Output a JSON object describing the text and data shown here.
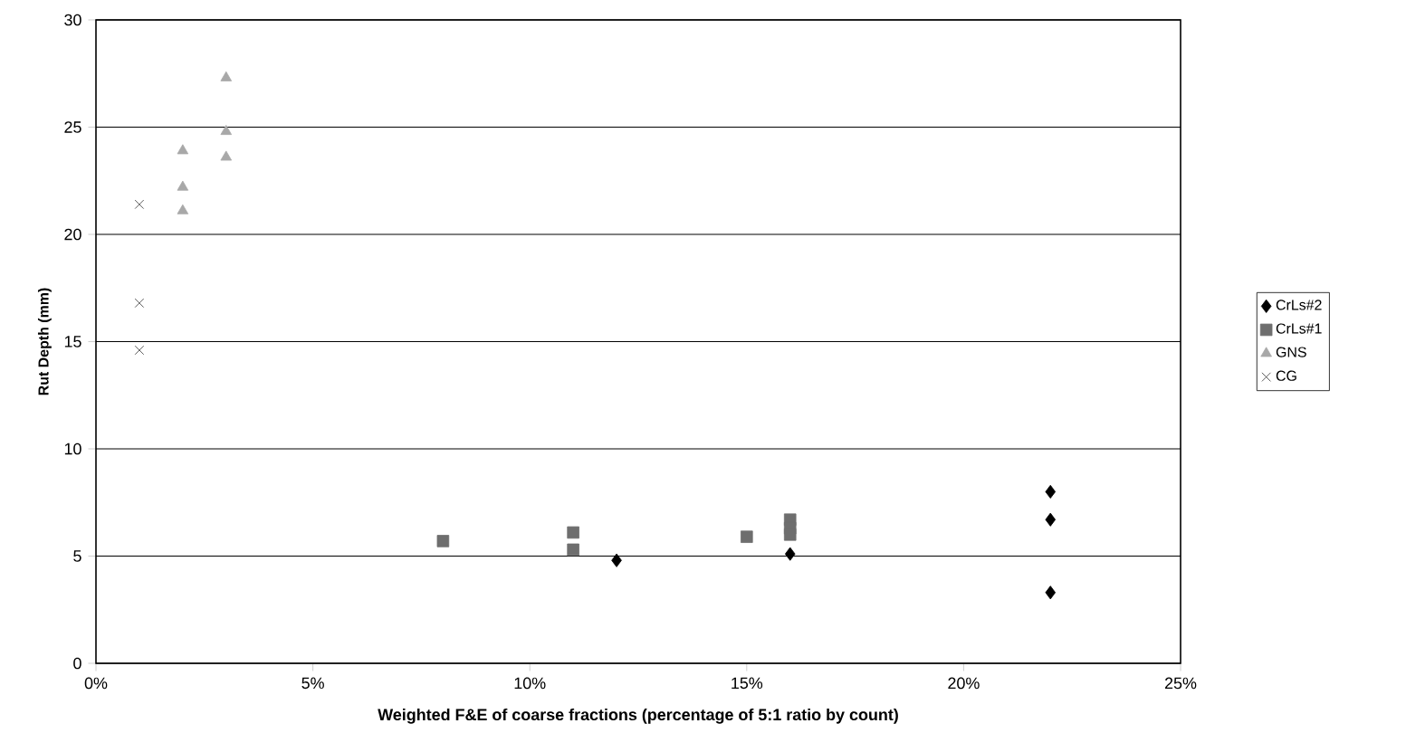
{
  "chart_data": {
    "type": "scatter",
    "xlabel": "Weighted F&E of coarse fractions (percentage of 5:1 ratio by count)",
    "ylabel": "Rut Depth (mm)",
    "xlim": [
      0,
      25
    ],
    "xticks": [
      {
        "value": 0,
        "label": "0%"
      },
      {
        "value": 5,
        "label": "5%"
      },
      {
        "value": 10,
        "label": "10%"
      },
      {
        "value": 15,
        "label": "15%"
      },
      {
        "value": 20,
        "label": "20%"
      },
      {
        "value": 25,
        "label": "25%"
      }
    ],
    "ylim": [
      0,
      30
    ],
    "yticks": [
      0,
      5,
      10,
      15,
      20,
      25,
      30
    ],
    "grid": "y",
    "legend": "right",
    "series": [
      {
        "name": "CrLs#2",
        "color": "#000000",
        "marker": "diamond",
        "x": [
          12,
          16,
          22,
          22,
          22
        ],
        "values": [
          4.8,
          5.1,
          8.0,
          6.7,
          3.3
        ]
      },
      {
        "name": "CrLs#1",
        "color": "#6e6e6e",
        "marker": "square",
        "x": [
          8,
          11,
          11,
          15,
          16,
          16,
          16
        ],
        "values": [
          5.7,
          6.1,
          5.3,
          5.9,
          6.7,
          6.3,
          6.0
        ]
      },
      {
        "name": "GNS",
        "color": "#a8a8a8",
        "marker": "triangle",
        "x": [
          2,
          2,
          2,
          3,
          3,
          3
        ],
        "values": [
          23.9,
          22.2,
          21.1,
          27.3,
          24.8,
          23.6
        ]
      },
      {
        "name": "CG",
        "color": "#333333",
        "marker": "cross",
        "x": [
          1,
          1,
          1
        ],
        "values": [
          21.4,
          16.8,
          14.6
        ]
      }
    ]
  }
}
